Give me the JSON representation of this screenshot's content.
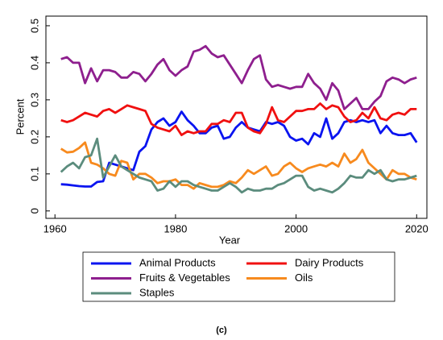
{
  "chart_data": {
    "type": "line",
    "xlabel": "Year",
    "ylabel": "Percent",
    "caption": "(c)",
    "x": [
      1961,
      1962,
      1963,
      1964,
      1965,
      1966,
      1967,
      1968,
      1969,
      1970,
      1971,
      1972,
      1973,
      1974,
      1975,
      1976,
      1977,
      1978,
      1979,
      1980,
      1981,
      1982,
      1983,
      1984,
      1985,
      1986,
      1987,
      1988,
      1989,
      1990,
      1991,
      1992,
      1993,
      1994,
      1995,
      1996,
      1997,
      1998,
      1999,
      2000,
      2001,
      2002,
      2003,
      2004,
      2005,
      2006,
      2007,
      2008,
      2009,
      2010,
      2011,
      2012,
      2013,
      2014,
      2015,
      2016,
      2017,
      2018,
      2019,
      2020
    ],
    "xlim": [
      1958.5,
      2021.7
    ],
    "xticks": [
      1960,
      1980,
      2000,
      2020
    ],
    "ylim": [
      -0.02,
      0.526
    ],
    "yticks": [
      0,
      0.1,
      0.2,
      0.3,
      0.4,
      0.5
    ],
    "legend": "bottom",
    "series": [
      {
        "name": "Animal Products",
        "color": "#0a14f0",
        "values": [
          0.072,
          0.071,
          0.069,
          0.067,
          0.066,
          0.066,
          0.078,
          0.08,
          0.13,
          0.125,
          0.12,
          0.115,
          0.11,
          0.16,
          0.175,
          0.22,
          0.24,
          0.25,
          0.23,
          0.24,
          0.268,
          0.245,
          0.23,
          0.21,
          0.21,
          0.225,
          0.23,
          0.195,
          0.2,
          0.225,
          0.24,
          0.225,
          0.22,
          0.215,
          0.24,
          0.235,
          0.24,
          0.23,
          0.2,
          0.19,
          0.195,
          0.18,
          0.21,
          0.2,
          0.25,
          0.195,
          0.21,
          0.24,
          0.245,
          0.24,
          0.245,
          0.24,
          0.245,
          0.21,
          0.23,
          0.21,
          0.205,
          0.205,
          0.21,
          0.185
        ]
      },
      {
        "name": "Dairy Products",
        "color": "#f01010",
        "values": [
          0.245,
          0.24,
          0.245,
          0.255,
          0.265,
          0.26,
          0.255,
          0.27,
          0.275,
          0.265,
          0.275,
          0.285,
          0.28,
          0.275,
          0.27,
          0.235,
          0.225,
          0.22,
          0.215,
          0.23,
          0.205,
          0.215,
          0.21,
          0.215,
          0.215,
          0.235,
          0.235,
          0.245,
          0.24,
          0.265,
          0.265,
          0.225,
          0.215,
          0.21,
          0.235,
          0.28,
          0.245,
          0.24,
          0.255,
          0.27,
          0.27,
          0.275,
          0.275,
          0.29,
          0.275,
          0.285,
          0.28,
          0.255,
          0.24,
          0.245,
          0.265,
          0.25,
          0.28,
          0.25,
          0.245,
          0.26,
          0.265,
          0.26,
          0.275,
          0.275
        ]
      },
      {
        "name": "Fruits & Vegetables",
        "color": "#8e1f8e",
        "values": [
          0.41,
          0.415,
          0.4,
          0.4,
          0.345,
          0.385,
          0.35,
          0.38,
          0.38,
          0.375,
          0.36,
          0.36,
          0.375,
          0.37,
          0.35,
          0.37,
          0.395,
          0.41,
          0.38,
          0.365,
          0.38,
          0.39,
          0.43,
          0.435,
          0.445,
          0.425,
          0.415,
          0.42,
          0.395,
          0.37,
          0.345,
          0.38,
          0.41,
          0.42,
          0.355,
          0.335,
          0.34,
          0.335,
          0.33,
          0.335,
          0.335,
          0.37,
          0.345,
          0.33,
          0.3,
          0.345,
          0.325,
          0.275,
          0.29,
          0.305,
          0.275,
          0.275,
          0.295,
          0.31,
          0.35,
          0.36,
          0.355,
          0.345,
          0.355,
          0.36
        ]
      },
      {
        "name": "Oils",
        "color": "#f78a1e",
        "values": [
          0.168,
          0.158,
          0.16,
          0.17,
          0.185,
          0.13,
          0.125,
          0.115,
          0.1,
          0.095,
          0.135,
          0.13,
          0.085,
          0.1,
          0.1,
          0.09,
          0.075,
          0.08,
          0.08,
          0.085,
          0.07,
          0.07,
          0.06,
          0.075,
          0.07,
          0.065,
          0.065,
          0.07,
          0.08,
          0.075,
          0.09,
          0.11,
          0.1,
          0.11,
          0.12,
          0.095,
          0.1,
          0.12,
          0.13,
          0.115,
          0.105,
          0.115,
          0.12,
          0.125,
          0.12,
          0.13,
          0.12,
          0.155,
          0.13,
          0.14,
          0.165,
          0.13,
          0.115,
          0.1,
          0.085,
          0.11,
          0.1,
          0.1,
          0.09,
          0.085
        ]
      },
      {
        "name": "Staples",
        "color": "#5b8c7d",
        "values": [
          0.105,
          0.12,
          0.13,
          0.115,
          0.145,
          0.15,
          0.195,
          0.09,
          0.12,
          0.15,
          0.12,
          0.11,
          0.1,
          0.09,
          0.085,
          0.08,
          0.055,
          0.06,
          0.08,
          0.065,
          0.08,
          0.08,
          0.07,
          0.065,
          0.06,
          0.055,
          0.055,
          0.065,
          0.075,
          0.065,
          0.05,
          0.06,
          0.055,
          0.055,
          0.06,
          0.06,
          0.07,
          0.075,
          0.085,
          0.095,
          0.095,
          0.065,
          0.055,
          0.06,
          0.055,
          0.05,
          0.06,
          0.075,
          0.095,
          0.09,
          0.09,
          0.11,
          0.1,
          0.11,
          0.085,
          0.08,
          0.085,
          0.085,
          0.09,
          0.095
        ]
      }
    ]
  }
}
